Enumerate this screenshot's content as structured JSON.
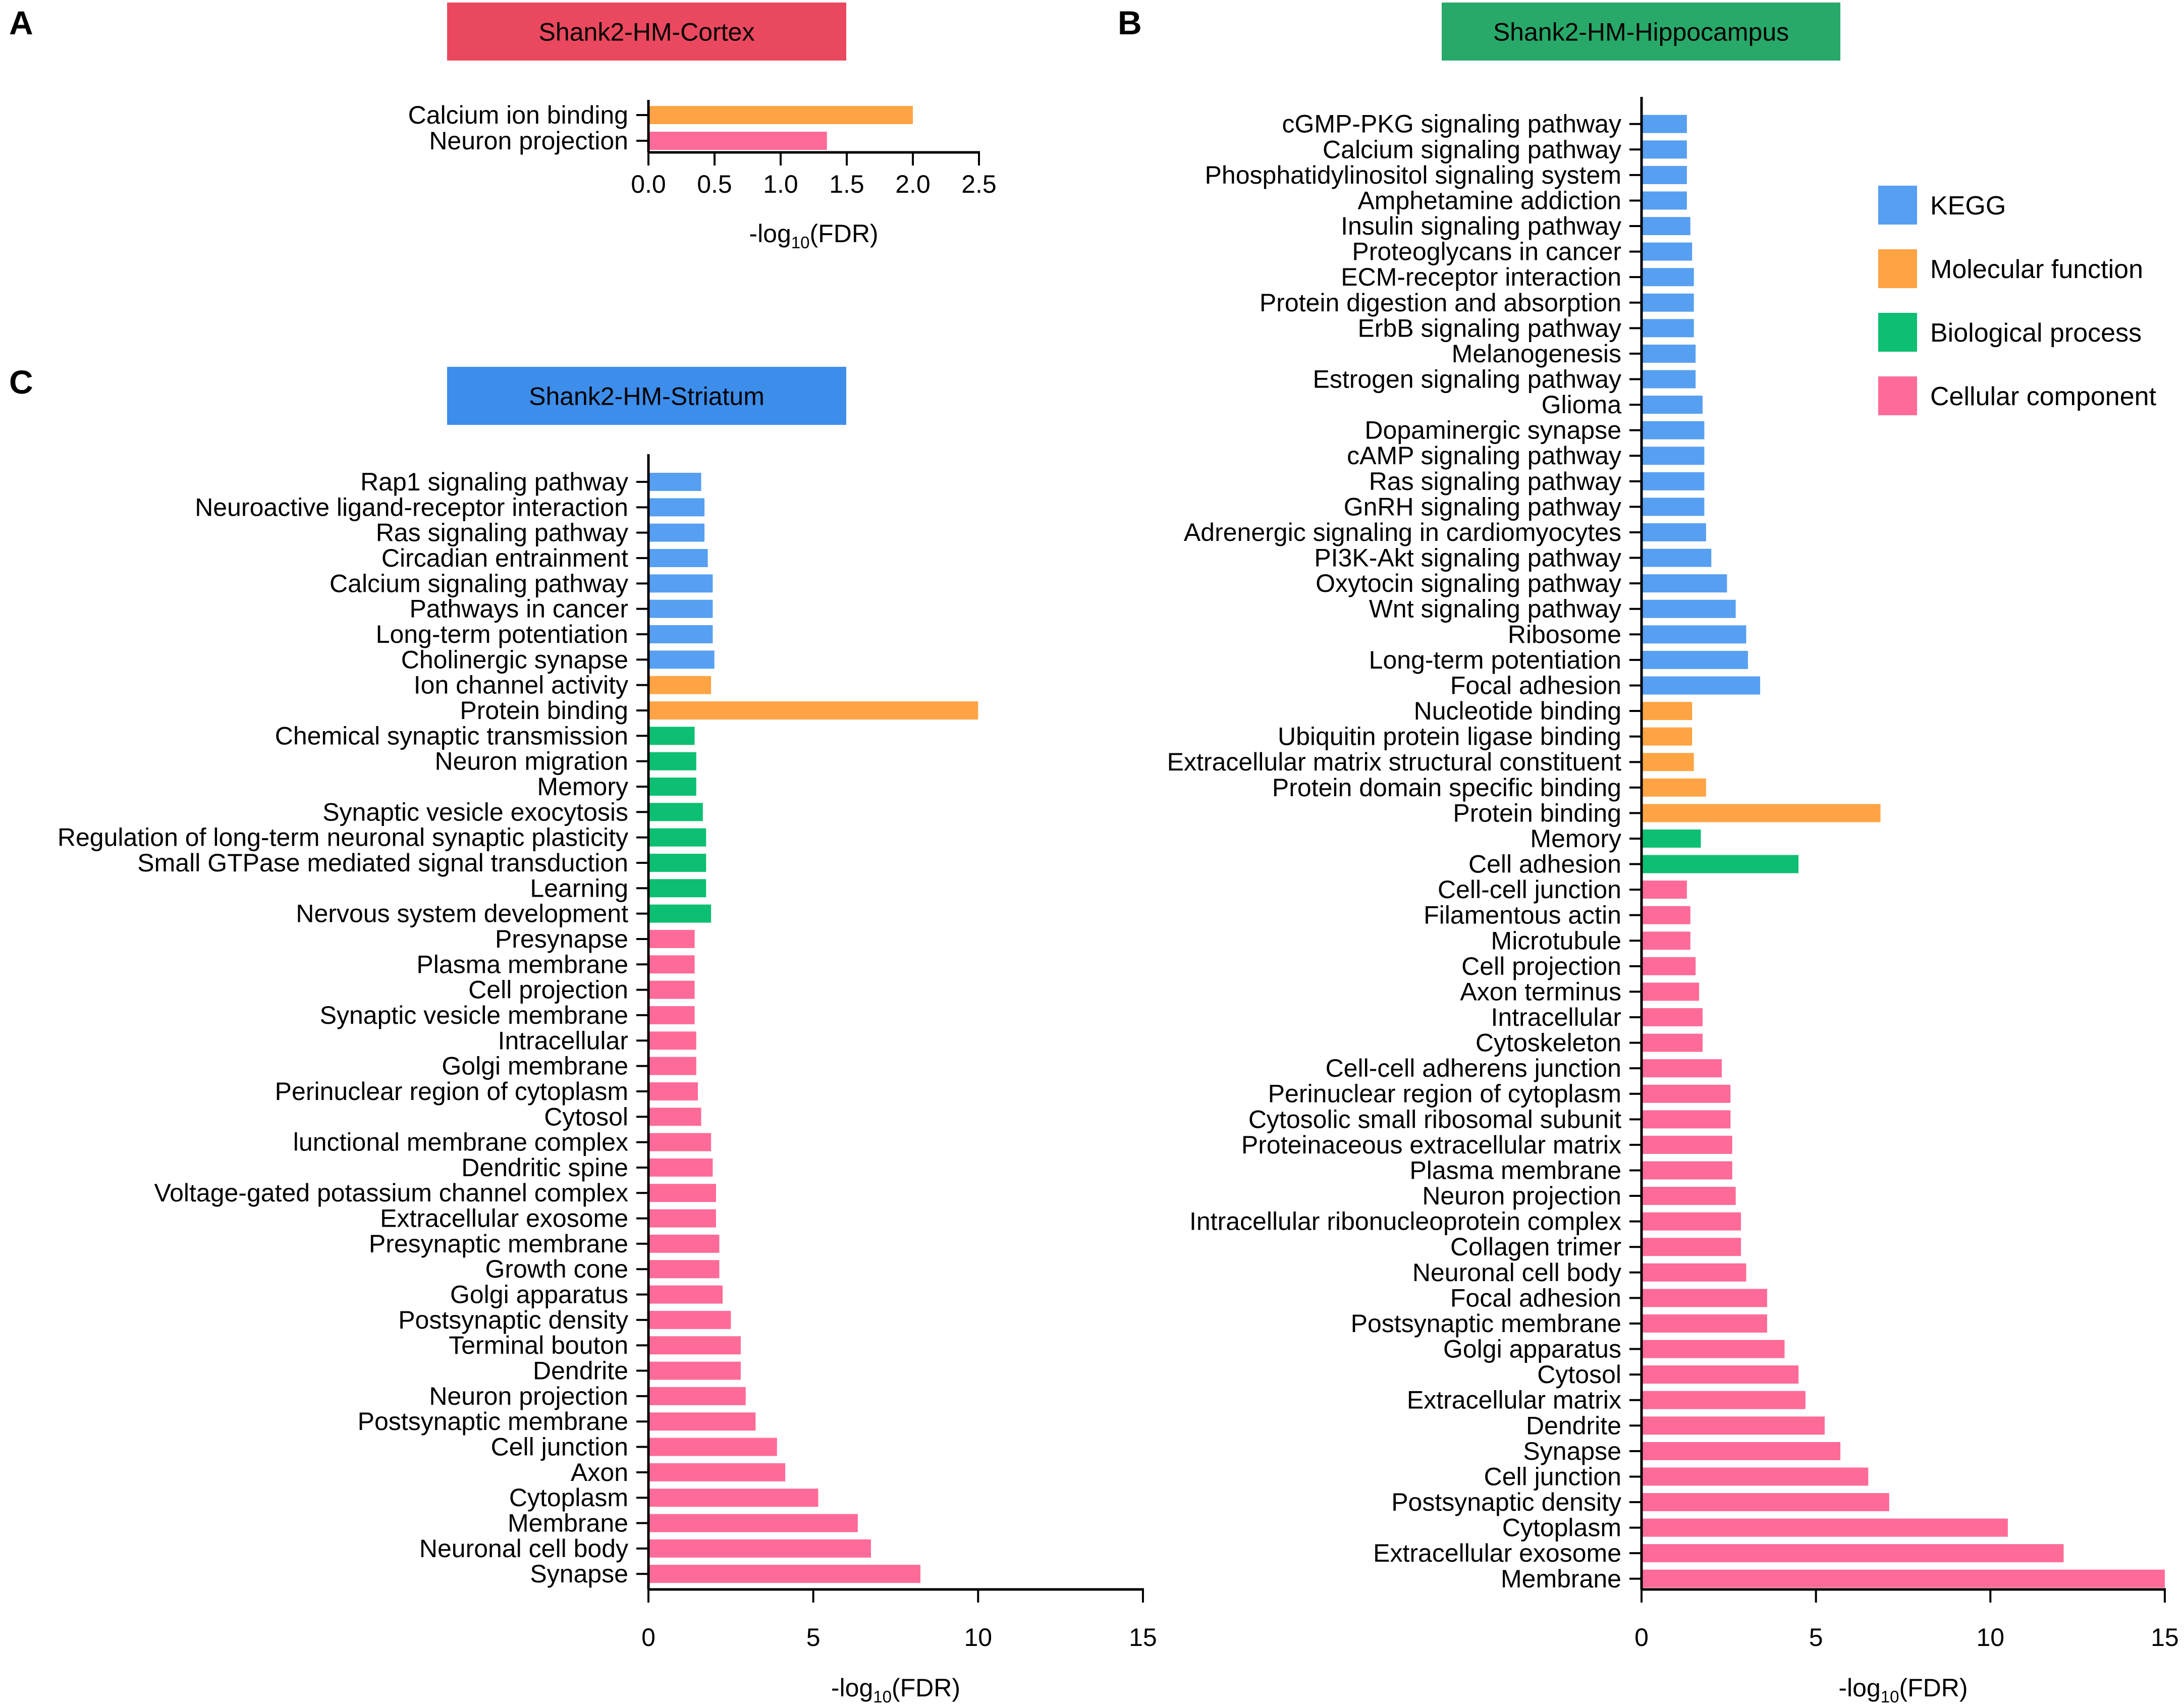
{
  "colors": {
    "KEGG": "#579FF1",
    "Molecular function": "#FFA445",
    "Biological process": "#0CBF72",
    "Cellular component": "#FF6B98"
  },
  "legend": {
    "items": [
      {
        "key": "KEGG",
        "label": "KEGG"
      },
      {
        "key": "Molecular function",
        "label": "Molecular function"
      },
      {
        "key": "Biological process",
        "label": "Biological process"
      },
      {
        "key": "Cellular component",
        "label": "Cellular component"
      }
    ]
  },
  "chart_data": [
    {
      "type": "bar",
      "orientation": "horizontal",
      "panel": "A",
      "title": "Shank2-HM-Cortex",
      "title_color": "#E9485E",
      "xlabel_base": "-log",
      "xlabel_sub": "10",
      "xlabel_tail": "(FDR)",
      "xlim": [
        0,
        2.5
      ],
      "xticks": [
        "0.0",
        "0.5",
        "1.0",
        "1.5",
        "2.0",
        "2.5"
      ],
      "xtick_values": [
        0,
        0.5,
        1.0,
        1.5,
        2.0,
        2.5
      ],
      "bars": [
        {
          "label": "Calcium ion binding",
          "value": 2.0,
          "category": "Molecular function"
        },
        {
          "label": "Neuron projection",
          "value": 1.35,
          "category": "Cellular component"
        }
      ]
    },
    {
      "type": "bar",
      "orientation": "horizontal",
      "panel": "B",
      "title": "Shank2-HM-Hippocampus",
      "title_color": "#28A96A",
      "xlabel_base": "-log",
      "xlabel_sub": "10",
      "xlabel_tail": "(FDR)",
      "xlim": [
        0,
        15
      ],
      "xticks": [
        "0",
        "5",
        "10",
        "15"
      ],
      "xtick_values": [
        0,
        5,
        10,
        15
      ],
      "bars": [
        {
          "label": "cGMP-PKG signaling pathway",
          "value": 1.3,
          "category": "KEGG"
        },
        {
          "label": "Calcium signaling pathway",
          "value": 1.3,
          "category": "KEGG"
        },
        {
          "label": "Phosphatidylinositol signaling system",
          "value": 1.3,
          "category": "KEGG"
        },
        {
          "label": "Amphetamine addiction",
          "value": 1.3,
          "category": "KEGG"
        },
        {
          "label": "Insulin signaling pathway",
          "value": 1.4,
          "category": "KEGG"
        },
        {
          "label": "Proteoglycans in cancer",
          "value": 1.45,
          "category": "KEGG"
        },
        {
          "label": "ECM-receptor interaction",
          "value": 1.5,
          "category": "KEGG"
        },
        {
          "label": "Protein digestion and absorption",
          "value": 1.5,
          "category": "KEGG"
        },
        {
          "label": "ErbB signaling pathway",
          "value": 1.5,
          "category": "KEGG"
        },
        {
          "label": "Melanogenesis",
          "value": 1.55,
          "category": "KEGG"
        },
        {
          "label": "Estrogen signaling pathway",
          "value": 1.55,
          "category": "KEGG"
        },
        {
          "label": "Glioma",
          "value": 1.75,
          "category": "KEGG"
        },
        {
          "label": "Dopaminergic synapse",
          "value": 1.8,
          "category": "KEGG"
        },
        {
          "label": "cAMP signaling pathway",
          "value": 1.8,
          "category": "KEGG"
        },
        {
          "label": "Ras signaling pathway",
          "value": 1.8,
          "category": "KEGG"
        },
        {
          "label": "GnRH signaling pathway",
          "value": 1.8,
          "category": "KEGG"
        },
        {
          "label": "Adrenergic signaling in cardiomyocytes",
          "value": 1.85,
          "category": "KEGG"
        },
        {
          "label": "PI3K-Akt signaling pathway",
          "value": 2.0,
          "category": "KEGG"
        },
        {
          "label": "Oxytocin signaling pathway",
          "value": 2.45,
          "category": "KEGG"
        },
        {
          "label": "Wnt signaling pathway",
          "value": 2.7,
          "category": "KEGG"
        },
        {
          "label": "Ribosome",
          "value": 3.0,
          "category": "KEGG"
        },
        {
          "label": "Long-term potentiation",
          "value": 3.05,
          "category": "KEGG"
        },
        {
          "label": "Focal adhesion",
          "value": 3.4,
          "category": "KEGG"
        },
        {
          "label": "Nucleotide binding",
          "value": 1.45,
          "category": "Molecular function"
        },
        {
          "label": "Ubiquitin protein ligase binding",
          "value": 1.45,
          "category": "Molecular function"
        },
        {
          "label": "Extracellular matrix structural constituent",
          "value": 1.5,
          "category": "Molecular function"
        },
        {
          "label": "Protein domain specific binding",
          "value": 1.85,
          "category": "Molecular function"
        },
        {
          "label": "Protein binding",
          "value": 6.85,
          "category": "Molecular function"
        },
        {
          "label": "Memory",
          "value": 1.7,
          "category": "Biological process"
        },
        {
          "label": "Cell adhesion",
          "value": 4.5,
          "category": "Biological process"
        },
        {
          "label": "Cell-cell junction",
          "value": 1.3,
          "category": "Cellular component"
        },
        {
          "label": "Filamentous actin",
          "value": 1.4,
          "category": "Cellular component"
        },
        {
          "label": "Microtubule",
          "value": 1.4,
          "category": "Cellular component"
        },
        {
          "label": "Cell projection",
          "value": 1.55,
          "category": "Cellular component"
        },
        {
          "label": "Axon terminus",
          "value": 1.65,
          "category": "Cellular component"
        },
        {
          "label": "Intracellular",
          "value": 1.75,
          "category": "Cellular component"
        },
        {
          "label": "Cytoskeleton",
          "value": 1.75,
          "category": "Cellular component"
        },
        {
          "label": "Cell-cell adherens junction",
          "value": 2.3,
          "category": "Cellular component"
        },
        {
          "label": "Perinuclear region of cytoplasm",
          "value": 2.55,
          "category": "Cellular component"
        },
        {
          "label": "Cytosolic small ribosomal subunit",
          "value": 2.55,
          "category": "Cellular component"
        },
        {
          "label": "Proteinaceous extracellular matrix",
          "value": 2.6,
          "category": "Cellular component"
        },
        {
          "label": "Plasma membrane",
          "value": 2.6,
          "category": "Cellular component"
        },
        {
          "label": "Neuron projection",
          "value": 2.7,
          "category": "Cellular component"
        },
        {
          "label": "Intracellular ribonucleoprotein complex",
          "value": 2.85,
          "category": "Cellular component"
        },
        {
          "label": "Collagen trimer",
          "value": 2.85,
          "category": "Cellular component"
        },
        {
          "label": "Neuronal cell body",
          "value": 3.0,
          "category": "Cellular component"
        },
        {
          "label": "Focal adhesion",
          "value": 3.6,
          "category": "Cellular component"
        },
        {
          "label": "Postsynaptic membrane",
          "value": 3.6,
          "category": "Cellular component"
        },
        {
          "label": "Golgi apparatus",
          "value": 4.1,
          "category": "Cellular component"
        },
        {
          "label": "Cytosol",
          "value": 4.5,
          "category": "Cellular component"
        },
        {
          "label": "Extracellular matrix",
          "value": 4.7,
          "category": "Cellular component"
        },
        {
          "label": "Dendrite",
          "value": 5.25,
          "category": "Cellular component"
        },
        {
          "label": "Synapse",
          "value": 5.7,
          "category": "Cellular component"
        },
        {
          "label": "Cell junction",
          "value": 6.5,
          "category": "Cellular component"
        },
        {
          "label": "Postsynaptic density",
          "value": 7.1,
          "category": "Cellular component"
        },
        {
          "label": "Cytoplasm",
          "value": 10.5,
          "category": "Cellular component"
        },
        {
          "label": "Extracellular exosome",
          "value": 12.1,
          "category": "Cellular component"
        },
        {
          "label": "Membrane",
          "value": 15.0,
          "category": "Cellular component"
        }
      ]
    },
    {
      "type": "bar",
      "orientation": "horizontal",
      "panel": "C",
      "title": "Shank2-HM-Striatum",
      "title_color": "#3D8DEB",
      "xlabel_base": "-log",
      "xlabel_sub": "10",
      "xlabel_tail": "(FDR)",
      "xlim": [
        0,
        15
      ],
      "xticks": [
        "0",
        "5",
        "10",
        "15"
      ],
      "xtick_values": [
        0,
        5,
        10,
        15
      ],
      "bars": [
        {
          "label": "Rap1 signaling pathway",
          "value": 1.6,
          "category": "KEGG"
        },
        {
          "label": "Neuroactive ligand-receptor interaction",
          "value": 1.7,
          "category": "KEGG"
        },
        {
          "label": "Ras signaling pathway",
          "value": 1.7,
          "category": "KEGG"
        },
        {
          "label": "Circadian entrainment",
          "value": 1.8,
          "category": "KEGG"
        },
        {
          "label": "Calcium signaling pathway",
          "value": 1.95,
          "category": "KEGG"
        },
        {
          "label": "Pathways in cancer",
          "value": 1.95,
          "category": "KEGG"
        },
        {
          "label": "Long-term potentiation",
          "value": 1.95,
          "category": "KEGG"
        },
        {
          "label": "Cholinergic synapse",
          "value": 2.0,
          "category": "KEGG"
        },
        {
          "label": "Ion channel activity",
          "value": 1.9,
          "category": "Molecular function"
        },
        {
          "label": "Protein binding",
          "value": 10.0,
          "category": "Molecular function"
        },
        {
          "label": "Chemical synaptic transmission",
          "value": 1.4,
          "category": "Biological process"
        },
        {
          "label": "Neuron migration",
          "value": 1.45,
          "category": "Biological process"
        },
        {
          "label": "Memory",
          "value": 1.45,
          "category": "Biological process"
        },
        {
          "label": "Synaptic vesicle exocytosis",
          "value": 1.65,
          "category": "Biological process"
        },
        {
          "label": "Regulation of long-term neuronal synaptic plasticity",
          "value": 1.75,
          "category": "Biological process"
        },
        {
          "label": "Small GTPase mediated signal transduction",
          "value": 1.75,
          "category": "Biological process"
        },
        {
          "label": "Learning",
          "value": 1.75,
          "category": "Biological process"
        },
        {
          "label": "Nervous system development",
          "value": 1.9,
          "category": "Biological process"
        },
        {
          "label": "Presynapse",
          "value": 1.4,
          "category": "Cellular component"
        },
        {
          "label": "Plasma membrane",
          "value": 1.4,
          "category": "Cellular component"
        },
        {
          "label": "Cell projection",
          "value": 1.4,
          "category": "Cellular component"
        },
        {
          "label": "Synaptic vesicle membrane",
          "value": 1.4,
          "category": "Cellular component"
        },
        {
          "label": "Intracellular",
          "value": 1.45,
          "category": "Cellular component"
        },
        {
          "label": "Golgi membrane",
          "value": 1.45,
          "category": "Cellular component"
        },
        {
          "label": "Perinuclear region of cytoplasm",
          "value": 1.5,
          "category": "Cellular component"
        },
        {
          "label": "Cytosol",
          "value": 1.6,
          "category": "Cellular component"
        },
        {
          "label": "lunctional membrane complex",
          "value": 1.9,
          "category": "Cellular component"
        },
        {
          "label": "Dendritic spine",
          "value": 1.95,
          "category": "Cellular component"
        },
        {
          "label": "Voltage-gated potassium channel complex",
          "value": 2.05,
          "category": "Cellular component"
        },
        {
          "label": "Extracellular exosome",
          "value": 2.05,
          "category": "Cellular component"
        },
        {
          "label": "Presynaptic membrane",
          "value": 2.15,
          "category": "Cellular component"
        },
        {
          "label": "Growth cone",
          "value": 2.15,
          "category": "Cellular component"
        },
        {
          "label": "Golgi apparatus",
          "value": 2.25,
          "category": "Cellular component"
        },
        {
          "label": "Postsynaptic density",
          "value": 2.5,
          "category": "Cellular component"
        },
        {
          "label": "Terminal bouton",
          "value": 2.8,
          "category": "Cellular component"
        },
        {
          "label": "Dendrite",
          "value": 2.8,
          "category": "Cellular component"
        },
        {
          "label": "Neuron projection",
          "value": 2.95,
          "category": "Cellular component"
        },
        {
          "label": "Postsynaptic membrane",
          "value": 3.25,
          "category": "Cellular component"
        },
        {
          "label": "Cell junction",
          "value": 3.9,
          "category": "Cellular component"
        },
        {
          "label": "Axon",
          "value": 4.15,
          "category": "Cellular component"
        },
        {
          "label": "Cytoplasm",
          "value": 5.15,
          "category": "Cellular component"
        },
        {
          "label": "Membrane",
          "value": 6.35,
          "category": "Cellular component"
        },
        {
          "label": "Neuronal cell body",
          "value": 6.75,
          "category": "Cellular component"
        },
        {
          "label": "Synapse",
          "value": 8.25,
          "category": "Cellular component"
        }
      ]
    }
  ]
}
